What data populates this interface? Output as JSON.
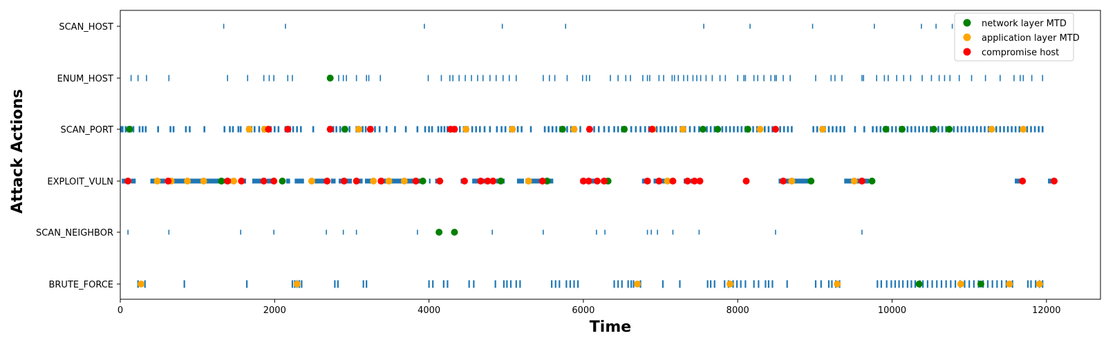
{
  "chart_data": {
    "type": "scatter",
    "title": "",
    "xlabel": "Time",
    "ylabel": "Attack Actions",
    "xlim": [
      0,
      12700
    ],
    "x_ticks": [
      "0",
      "2000",
      "4000",
      "6000",
      "8000",
      "10000",
      "12000"
    ],
    "x_tick_values": [
      0,
      2000,
      4000,
      6000,
      8000,
      10000,
      12000
    ],
    "categories": [
      "SCAN_HOST",
      "ENUM_HOST",
      "SCAN_PORT",
      "EXPLOIT_VULN",
      "SCAN_NEIGHBOR",
      "BRUTE_FORCE"
    ],
    "grid": false,
    "legend_position": "top-right",
    "action_color": "#1f77b4",
    "actions": {
      "SCAN_HOST": [
        1340,
        2140,
        3940,
        4950,
        5770,
        7560,
        8160,
        8970,
        9770,
        10380,
        10570,
        10780
      ],
      "ENUM_HOST": [
        140,
        230,
        340,
        630,
        1390,
        1650,
        1860,
        1930,
        1990,
        2170,
        2230,
        2700,
        2830,
        2890,
        2930,
        3060,
        3190,
        3220,
        3370,
        3990,
        4160,
        4270,
        4310,
        4390,
        4470,
        4550,
        4630,
        4700,
        4790,
        4870,
        4960,
        5040,
        5130,
        5480,
        5560,
        5630,
        5790,
        5990,
        6040,
        6080,
        6350,
        6450,
        6550,
        6610,
        6770,
        6830,
        6860,
        6980,
        7040,
        7150,
        7180,
        7230,
        7300,
        7350,
        7420,
        7470,
        7520,
        7590,
        7670,
        7770,
        7840,
        8000,
        8080,
        8100,
        8210,
        8260,
        8340,
        8430,
        8480,
        8500,
        8590,
        8680,
        9010,
        9210,
        9260,
        9350,
        9610,
        9630,
        9800,
        9900,
        9950,
        10060,
        10150,
        10240,
        10390,
        10510,
        10610,
        10680,
        10750,
        10870,
        11030,
        11210,
        11400,
        11580,
        11660,
        11700,
        11810,
        11950
      ],
      "SCAN_PORT": [
        10,
        30,
        70,
        100,
        140,
        170,
        250,
        290,
        330,
        490,
        650,
        690,
        850,
        900,
        1090,
        1350,
        1420,
        1460,
        1530,
        1560,
        1650,
        1700,
        1740,
        1800,
        1850,
        1910,
        1950,
        2000,
        2050,
        2140,
        2200,
        2240,
        2290,
        2340,
        2500,
        2700,
        2760,
        2800,
        2850,
        2890,
        2930,
        2970,
        3060,
        3100,
        3140,
        3180,
        3220,
        3260,
        3300,
        3360,
        3450,
        3560,
        3700,
        3850,
        3950,
        4000,
        4040,
        4120,
        4160,
        4200,
        4240,
        4300,
        4350,
        4400,
        4450,
        4500,
        4560,
        4610,
        4660,
        4720,
        4790,
        4880,
        4940,
        4990,
        5050,
        5100,
        5150,
        5200,
        5320,
        5500,
        5550,
        5600,
        5650,
        5700,
        5750,
        5790,
        5840,
        5900,
        5960,
        6060,
        6140,
        6200,
        6270,
        6330,
        6400,
        6450,
        6500,
        6550,
        6620,
        6680,
        6740,
        6800,
        6850,
        6900,
        6950,
        7000,
        7050,
        7100,
        7150,
        7200,
        7260,
        7320,
        7380,
        7440,
        7500,
        7550,
        7600,
        7650,
        7700,
        7750,
        7800,
        7850,
        7900,
        7950,
        8000,
        8050,
        8100,
        8150,
        8200,
        8250,
        8300,
        8350,
        8400,
        8450,
        8500,
        8550,
        8600,
        8650,
        8700,
        8980,
        9030,
        9080,
        9130,
        9180,
        9230,
        9280,
        9330,
        9380,
        9520,
        9640,
        9750,
        9800,
        9850,
        9900,
        9950,
        10000,
        10050,
        10100,
        10150,
        10200,
        10250,
        10300,
        10350,
        10400,
        10450,
        10500,
        10550,
        10600,
        10650,
        10700,
        10750,
        10800,
        10850,
        10900,
        10950,
        11000,
        11050,
        11100,
        11150,
        11200,
        11250,
        11300,
        11350,
        11400,
        11450,
        11500,
        11550,
        11600,
        11650,
        11700,
        11750,
        11800,
        11850,
        11900,
        11950
      ],
      "SCAN_NEIGHBOR": [
        100,
        630,
        1560,
        1990,
        2670,
        2890,
        3060,
        3850,
        4820,
        5480,
        6170,
        6280,
        6830,
        6880,
        6960,
        7160,
        7500,
        8490,
        9610
      ],
      "BRUTE_FORCE": [
        230,
        320,
        830,
        1640,
        2230,
        2260,
        2290,
        2320,
        2350,
        2780,
        2820,
        3150,
        3190,
        4000,
        4050,
        4190,
        4240,
        4520,
        4580,
        4860,
        4970,
        5010,
        5060,
        5130,
        5180,
        5590,
        5640,
        5690,
        5780,
        5830,
        5880,
        5930,
        6400,
        6450,
        6500,
        6580,
        6620,
        6650,
        6740,
        7030,
        7250,
        7610,
        7650,
        7700,
        7830,
        7880,
        7940,
        7990,
        8040,
        8100,
        8210,
        8270,
        8360,
        8400,
        8450,
        8640,
        9010,
        9080,
        9180,
        9220,
        9270,
        9320,
        9810,
        9860,
        9930,
        9990,
        10040,
        10090,
        10140,
        10200,
        10250,
        10300,
        10360,
        10400,
        10460,
        10520,
        10580,
        10640,
        10700,
        10760,
        10820,
        10880,
        10940,
        11000,
        11060,
        11120,
        11180,
        11240,
        11300,
        11360,
        11420,
        11480,
        11560,
        11760,
        11800,
        11860,
        11910,
        11950
      ]
    },
    "exploit_bars": [
      [
        20,
        130
      ],
      [
        140,
        200
      ],
      [
        390,
        580
      ],
      [
        620,
        1290
      ],
      [
        1330,
        1470
      ],
      [
        1560,
        1630
      ],
      [
        1710,
        1860
      ],
      [
        1900,
        2010
      ],
      [
        2150,
        2200
      ],
      [
        2260,
        2380
      ],
      [
        2520,
        2680
      ],
      [
        2730,
        2790
      ],
      [
        2830,
        3000
      ],
      [
        3060,
        3140
      ],
      [
        3170,
        3290
      ],
      [
        3340,
        3920
      ],
      [
        4000,
        4020
      ],
      [
        4080,
        4150
      ],
      [
        4410,
        4470
      ],
      [
        4560,
        4780
      ],
      [
        4870,
        4980
      ],
      [
        5140,
        5230
      ],
      [
        5250,
        5610
      ],
      [
        5960,
        6180
      ],
      [
        6230,
        6330
      ],
      [
        6760,
        6870
      ],
      [
        6910,
        6960
      ],
      [
        7010,
        7160
      ],
      [
        7300,
        7350
      ],
      [
        7390,
        7410
      ],
      [
        7450,
        7530
      ],
      [
        8530,
        8960
      ],
      [
        9380,
        9700
      ],
      [
        11590,
        11720
      ],
      [
        12020,
        12100
      ]
    ],
    "series": [
      {
        "name": "network layer MTD",
        "color": "#008000",
        "points": [
          {
            "x": 120,
            "action": "SCAN_PORT"
          },
          {
            "x": 2720,
            "action": "ENUM_HOST"
          },
          {
            "x": 2910,
            "action": "SCAN_PORT"
          },
          {
            "x": 5730,
            "action": "SCAN_PORT"
          },
          {
            "x": 6530,
            "action": "SCAN_PORT"
          },
          {
            "x": 7550,
            "action": "SCAN_PORT"
          },
          {
            "x": 7740,
            "action": "SCAN_PORT"
          },
          {
            "x": 8130,
            "action": "SCAN_PORT"
          },
          {
            "x": 9920,
            "action": "SCAN_PORT"
          },
          {
            "x": 10130,
            "action": "SCAN_PORT"
          },
          {
            "x": 10540,
            "action": "SCAN_PORT"
          },
          {
            "x": 10740,
            "action": "SCAN_PORT"
          },
          {
            "x": 1310,
            "action": "EXPLOIT_VULN"
          },
          {
            "x": 2100,
            "action": "EXPLOIT_VULN"
          },
          {
            "x": 3920,
            "action": "EXPLOIT_VULN"
          },
          {
            "x": 4930,
            "action": "EXPLOIT_VULN"
          },
          {
            "x": 5530,
            "action": "EXPLOIT_VULN"
          },
          {
            "x": 6320,
            "action": "EXPLOIT_VULN"
          },
          {
            "x": 8950,
            "action": "EXPLOIT_VULN"
          },
          {
            "x": 9740,
            "action": "EXPLOIT_VULN"
          },
          {
            "x": 4130,
            "action": "SCAN_NEIGHBOR"
          },
          {
            "x": 4330,
            "action": "SCAN_NEIGHBOR"
          },
          {
            "x": 10350,
            "action": "BRUTE_FORCE"
          },
          {
            "x": 11150,
            "action": "BRUTE_FORCE"
          }
        ]
      },
      {
        "name": "application layer MTD",
        "color": "#ffa500",
        "points": [
          {
            "x": 1670,
            "action": "SCAN_PORT"
          },
          {
            "x": 1870,
            "action": "SCAN_PORT"
          },
          {
            "x": 3090,
            "action": "SCAN_PORT"
          },
          {
            "x": 4480,
            "action": "SCAN_PORT"
          },
          {
            "x": 5080,
            "action": "SCAN_PORT"
          },
          {
            "x": 5880,
            "action": "SCAN_PORT"
          },
          {
            "x": 6900,
            "action": "SCAN_PORT"
          },
          {
            "x": 7290,
            "action": "SCAN_PORT"
          },
          {
            "x": 8290,
            "action": "SCAN_PORT"
          },
          {
            "x": 9100,
            "action": "SCAN_PORT"
          },
          {
            "x": 11290,
            "action": "SCAN_PORT"
          },
          {
            "x": 11700,
            "action": "SCAN_PORT"
          },
          {
            "x": 480,
            "action": "EXPLOIT_VULN"
          },
          {
            "x": 660,
            "action": "EXPLOIT_VULN"
          },
          {
            "x": 870,
            "action": "EXPLOIT_VULN"
          },
          {
            "x": 1080,
            "action": "EXPLOIT_VULN"
          },
          {
            "x": 1470,
            "action": "EXPLOIT_VULN"
          },
          {
            "x": 2480,
            "action": "EXPLOIT_VULN"
          },
          {
            "x": 3280,
            "action": "EXPLOIT_VULN"
          },
          {
            "x": 3480,
            "action": "EXPLOIT_VULN"
          },
          {
            "x": 3680,
            "action": "EXPLOIT_VULN"
          },
          {
            "x": 5290,
            "action": "EXPLOIT_VULN"
          },
          {
            "x": 7090,
            "action": "EXPLOIT_VULN"
          },
          {
            "x": 8700,
            "action": "EXPLOIT_VULN"
          },
          {
            "x": 9510,
            "action": "EXPLOIT_VULN"
          },
          {
            "x": 270,
            "action": "BRUTE_FORCE"
          },
          {
            "x": 2290,
            "action": "BRUTE_FORCE"
          },
          {
            "x": 6700,
            "action": "BRUTE_FORCE"
          },
          {
            "x": 7900,
            "action": "BRUTE_FORCE"
          },
          {
            "x": 9290,
            "action": "BRUTE_FORCE"
          },
          {
            "x": 10890,
            "action": "BRUTE_FORCE"
          },
          {
            "x": 11520,
            "action": "BRUTE_FORCE"
          },
          {
            "x": 11910,
            "action": "BRUTE_FORCE"
          }
        ]
      },
      {
        "name": "compromise host",
        "color": "#ff0000",
        "points": [
          {
            "x": 1920,
            "action": "SCAN_PORT"
          },
          {
            "x": 2170,
            "action": "SCAN_PORT"
          },
          {
            "x": 2720,
            "action": "SCAN_PORT"
          },
          {
            "x": 3240,
            "action": "SCAN_PORT"
          },
          {
            "x": 4280,
            "action": "SCAN_PORT"
          },
          {
            "x": 4330,
            "action": "SCAN_PORT"
          },
          {
            "x": 6080,
            "action": "SCAN_PORT"
          },
          {
            "x": 6890,
            "action": "SCAN_PORT"
          },
          {
            "x": 8490,
            "action": "SCAN_PORT"
          },
          {
            "x": 100,
            "action": "EXPLOIT_VULN"
          },
          {
            "x": 620,
            "action": "EXPLOIT_VULN"
          },
          {
            "x": 1390,
            "action": "EXPLOIT_VULN"
          },
          {
            "x": 1570,
            "action": "EXPLOIT_VULN"
          },
          {
            "x": 1860,
            "action": "EXPLOIT_VULN"
          },
          {
            "x": 1990,
            "action": "EXPLOIT_VULN"
          },
          {
            "x": 2680,
            "action": "EXPLOIT_VULN"
          },
          {
            "x": 2900,
            "action": "EXPLOIT_VULN"
          },
          {
            "x": 3060,
            "action": "EXPLOIT_VULN"
          },
          {
            "x": 3380,
            "action": "EXPLOIT_VULN"
          },
          {
            "x": 3830,
            "action": "EXPLOIT_VULN"
          },
          {
            "x": 4140,
            "action": "EXPLOIT_VULN"
          },
          {
            "x": 4460,
            "action": "EXPLOIT_VULN"
          },
          {
            "x": 4670,
            "action": "EXPLOIT_VULN"
          },
          {
            "x": 4760,
            "action": "EXPLOIT_VULN"
          },
          {
            "x": 4830,
            "action": "EXPLOIT_VULN"
          },
          {
            "x": 5470,
            "action": "EXPLOIT_VULN"
          },
          {
            "x": 6000,
            "action": "EXPLOIT_VULN"
          },
          {
            "x": 6070,
            "action": "EXPLOIT_VULN"
          },
          {
            "x": 6180,
            "action": "EXPLOIT_VULN"
          },
          {
            "x": 6270,
            "action": "EXPLOIT_VULN"
          },
          {
            "x": 6830,
            "action": "EXPLOIT_VULN"
          },
          {
            "x": 6980,
            "action": "EXPLOIT_VULN"
          },
          {
            "x": 7160,
            "action": "EXPLOIT_VULN"
          },
          {
            "x": 7350,
            "action": "EXPLOIT_VULN"
          },
          {
            "x": 7440,
            "action": "EXPLOIT_VULN"
          },
          {
            "x": 7510,
            "action": "EXPLOIT_VULN"
          },
          {
            "x": 8110,
            "action": "EXPLOIT_VULN"
          },
          {
            "x": 8590,
            "action": "EXPLOIT_VULN"
          },
          {
            "x": 9610,
            "action": "EXPLOIT_VULN"
          },
          {
            "x": 11690,
            "action": "EXPLOIT_VULN"
          },
          {
            "x": 12100,
            "action": "EXPLOIT_VULN"
          }
        ]
      }
    ]
  }
}
